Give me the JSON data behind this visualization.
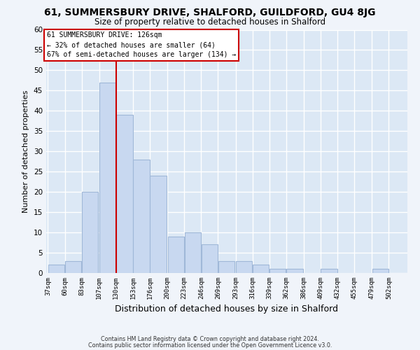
{
  "title": "61, SUMMERSBURY DRIVE, SHALFORD, GUILDFORD, GU4 8JG",
  "subtitle": "Size of property relative to detached houses in Shalford",
  "xlabel": "Distribution of detached houses by size in Shalford",
  "ylabel": "Number of detached properties",
  "bar_color": "#c8d8f0",
  "bar_edge_color": "#a0b8d8",
  "grid_color": "#ffffff",
  "bg_color": "#dce8f5",
  "vline_color": "#cc0000",
  "annotation_text": "61 SUMMERSBURY DRIVE: 126sqm\n← 32% of detached houses are smaller (64)\n67% of semi-detached houses are larger (134) →",
  "annotation_box_color": "#ffffff",
  "annotation_box_edge": "#cc0000",
  "bins": [
    37,
    60,
    83,
    107,
    130,
    153,
    176,
    200,
    223,
    246,
    269,
    293,
    316,
    339,
    362,
    386,
    409,
    432,
    455,
    479,
    502
  ],
  "counts": [
    2,
    3,
    20,
    47,
    39,
    28,
    24,
    9,
    10,
    7,
    3,
    3,
    2,
    1,
    1,
    0,
    1,
    0,
    0,
    1
  ],
  "tick_labels": [
    "37sqm",
    "60sqm",
    "83sqm",
    "107sqm",
    "130sqm",
    "153sqm",
    "176sqm",
    "200sqm",
    "223sqm",
    "246sqm",
    "269sqm",
    "293sqm",
    "316sqm",
    "339sqm",
    "362sqm",
    "386sqm",
    "409sqm",
    "432sqm",
    "455sqm",
    "479sqm",
    "502sqm"
  ],
  "ylim": [
    0,
    60
  ],
  "yticks": [
    0,
    5,
    10,
    15,
    20,
    25,
    30,
    35,
    40,
    45,
    50,
    55,
    60
  ],
  "footer_line1": "Contains HM Land Registry data © Crown copyright and database right 2024.",
  "footer_line2": "Contains public sector information licensed under the Open Government Licence v3.0."
}
